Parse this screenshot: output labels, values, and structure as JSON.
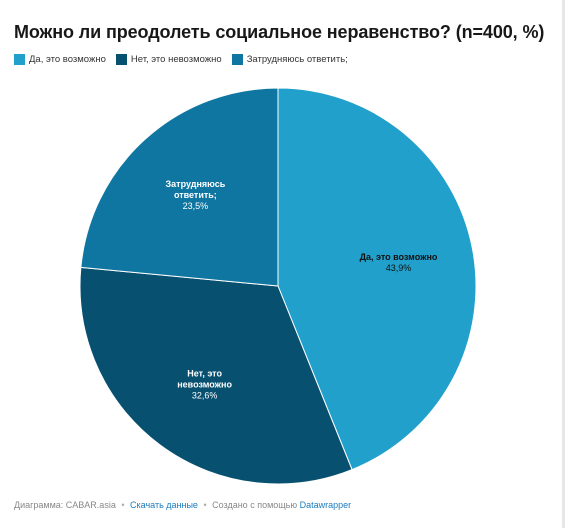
{
  "chart_data": {
    "type": "pie",
    "title": "Можно ли преодолеть социальное неравенство? (n=400, %)",
    "slices": [
      {
        "label": "Да, это возможно",
        "value": 43.9,
        "value_text": "43,9%",
        "color": "#21a0cb",
        "label_lines": [
          "Да, это возможно"
        ],
        "legend_label": "Да, это возможно"
      },
      {
        "label": "Нет, это невозможно",
        "value": 32.6,
        "value_text": "32,6%",
        "color": "#08506f",
        "label_lines": [
          "Нет, это",
          "невозможно"
        ],
        "legend_label": "Нет, это невозможно"
      },
      {
        "label": "Затрудняюсь ответить;",
        "value": 23.5,
        "value_text": "23,5%",
        "color": "#0f76a1",
        "label_lines": [
          "Затрудняюсь",
          "ответить;"
        ],
        "legend_label": "Затрудняюсь ответить;"
      }
    ],
    "legend_position": "top-left",
    "start_angle": "12 o'clock",
    "direction": "clockwise"
  },
  "footer": {
    "source": "Диаграмма: CABAR.asia",
    "sep": "•",
    "download": "Скачать данные",
    "created_with": "Создано с помощью",
    "tool": "Datawrapper"
  }
}
